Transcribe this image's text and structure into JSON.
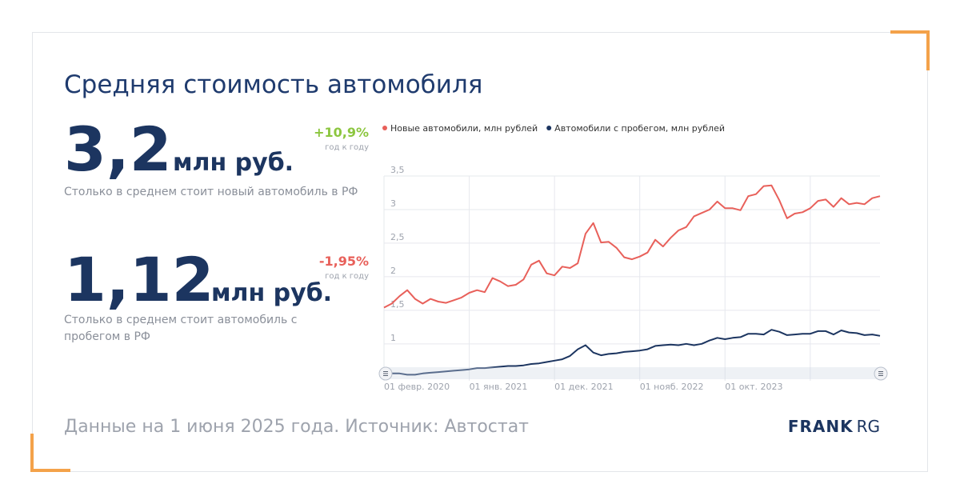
{
  "header": {
    "title": "Средняя стоимость автомобиля"
  },
  "kpis": [
    {
      "value": "3,2",
      "unit": "млн руб.",
      "change": "+10,9%",
      "change_note": "год к году",
      "description": "Столько в среднем стоит новый автомобиль в РФ"
    },
    {
      "value": "1,12",
      "unit": "млн руб.",
      "change": "-1,95%",
      "change_note": "год к году",
      "description": "Столько в среднем стоит автомобиль с пробегом в РФ"
    }
  ],
  "footer": {
    "source": "Данные на 1 июня 2025 года. Источник: Автостат",
    "logo_bold": "FRANK",
    "logo_light": "RG"
  },
  "chart_data": {
    "type": "line",
    "categories": [
      "01 февр. 2020",
      null,
      null,
      null,
      null,
      null,
      null,
      null,
      null,
      null,
      null,
      "01 янв. 2021",
      null,
      null,
      null,
      null,
      null,
      null,
      null,
      null,
      null,
      null,
      "01 дек. 2021",
      null,
      null,
      null,
      null,
      null,
      null,
      null,
      null,
      null,
      null,
      "01 нояб. 2022",
      null,
      null,
      null,
      null,
      null,
      null,
      null,
      null,
      null,
      null,
      "01 окт. 2023",
      null,
      null,
      null,
      null,
      null,
      null,
      null,
      null,
      null,
      null,
      null,
      null,
      null,
      null,
      null,
      null,
      null,
      null,
      null,
      null
    ],
    "series": [
      {
        "name": "Новые автомобили, млн рублей",
        "color": "#e8605a",
        "values": [
          1.54,
          1.6,
          1.71,
          1.8,
          1.67,
          1.6,
          1.67,
          1.63,
          1.61,
          1.65,
          1.69,
          1.76,
          1.8,
          1.77,
          1.98,
          1.93,
          1.86,
          1.88,
          1.96,
          2.18,
          2.24,
          2.05,
          2.02,
          2.15,
          2.13,
          2.2,
          2.64,
          2.8,
          2.51,
          2.52,
          2.43,
          2.29,
          2.26,
          2.3,
          2.36,
          2.55,
          2.45,
          2.58,
          2.69,
          2.74,
          2.9,
          2.95,
          3.0,
          3.12,
          3.02,
          3.02,
          2.99,
          3.2,
          3.23,
          3.35,
          3.36,
          3.14,
          2.87,
          2.94,
          2.96,
          3.02,
          3.13,
          3.15,
          3.04,
          3.17,
          3.08,
          3.1,
          3.08,
          3.17,
          3.2
        ]
      },
      {
        "name": "Автомобили с пробегом, млн рублей",
        "color": "#1c3560",
        "values": [
          0.52,
          0.56,
          0.56,
          0.54,
          0.54,
          0.56,
          0.57,
          0.58,
          0.59,
          0.6,
          0.61,
          0.62,
          0.64,
          0.64,
          0.65,
          0.66,
          0.67,
          0.67,
          0.68,
          0.7,
          0.71,
          0.73,
          0.75,
          0.77,
          0.82,
          0.92,
          0.98,
          0.87,
          0.83,
          0.85,
          0.86,
          0.88,
          0.89,
          0.9,
          0.92,
          0.97,
          0.98,
          0.99,
          0.98,
          1.0,
          0.98,
          1.0,
          1.05,
          1.09,
          1.07,
          1.09,
          1.1,
          1.15,
          1.15,
          1.14,
          1.21,
          1.18,
          1.13,
          1.14,
          1.15,
          1.15,
          1.19,
          1.19,
          1.14,
          1.2,
          1.17,
          1.16,
          1.13,
          1.14,
          1.12
        ]
      }
    ],
    "ylim": [
      0.45,
      3.5
    ],
    "yticks": [
      {
        "value": 3.5,
        "label": "3,5"
      },
      3,
      {
        "value": 2.5,
        "label": "2,5"
      },
      2,
      {
        "value": 1.5,
        "label": "1,5"
      },
      1
    ],
    "grid": true,
    "legend": "top"
  }
}
